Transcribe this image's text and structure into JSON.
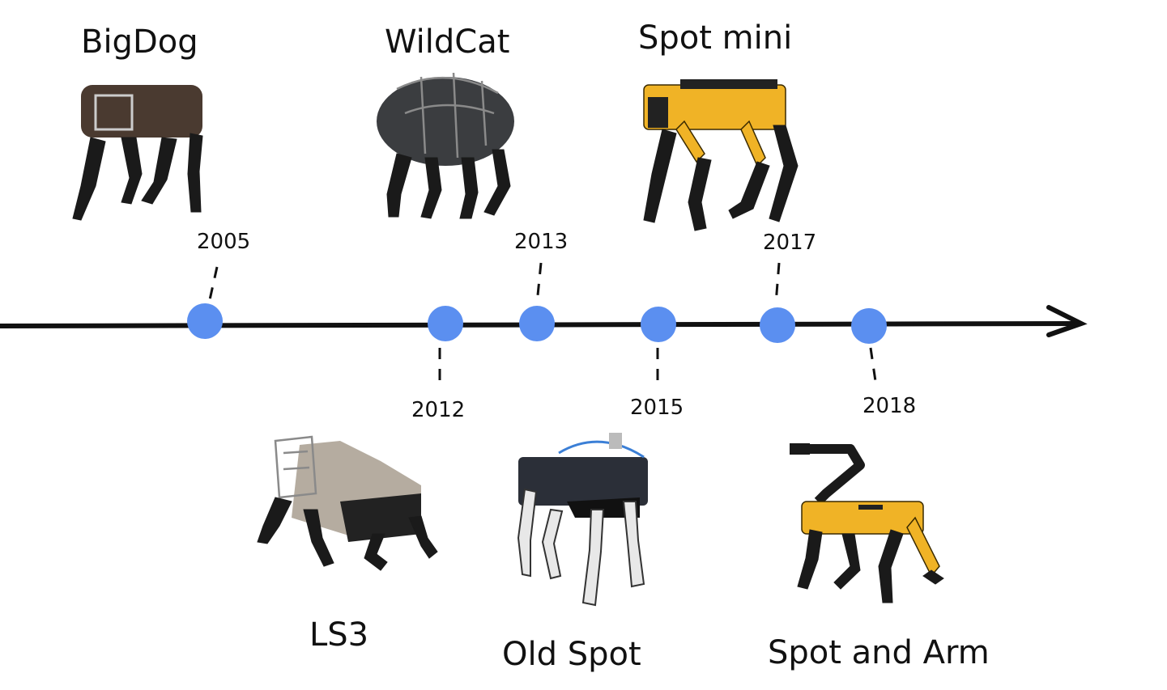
{
  "timeline": {
    "colors": {
      "axis": "#111111",
      "milestone_dot": "#5b8ff0",
      "text": "#111111",
      "robot_yellow": "#f0b326"
    },
    "milestones": [
      {
        "year": "2005",
        "robot": "BigDog",
        "side": "above"
      },
      {
        "year": "2012",
        "robot": "LS3",
        "side": "below"
      },
      {
        "year": "2013",
        "robot": "WildCat",
        "side": "above"
      },
      {
        "year": "2015",
        "robot": "Old Spot",
        "side": "below"
      },
      {
        "year": "2017",
        "robot": "Spot mini",
        "side": "above"
      },
      {
        "year": "2018",
        "robot": "Spot and Arm",
        "side": "below"
      }
    ]
  }
}
